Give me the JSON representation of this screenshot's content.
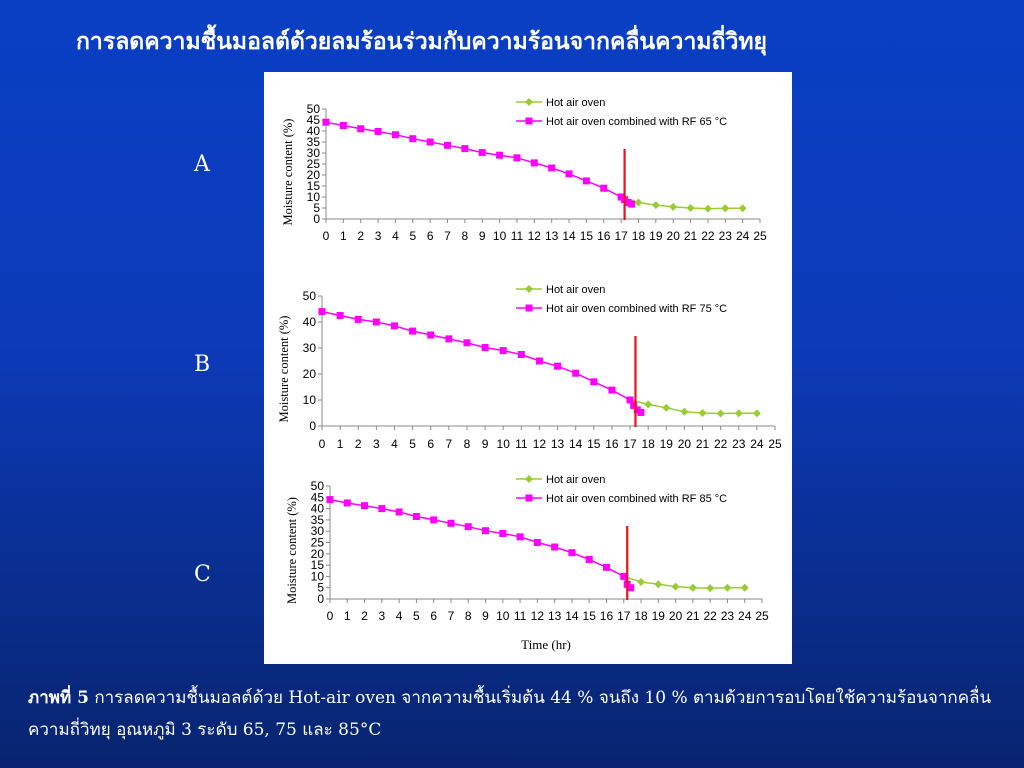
{
  "title": "การลดความชื้นมอลต์ด้วยลมร้อนร่วมกับความร้อนจากคลื่นความถี่วิทยุ",
  "labels": {
    "a": "A",
    "b": "B",
    "c": "C"
  },
  "caption": {
    "prefix": "ภาพที่ 5",
    "text": " การลดความชื้นมอลต์ด้วย Hot-air oven จากความชื้นเริ่มต้น 44 % จนถึง 10 % ตามด้วยการอบโดยใช้ความร้อนจากคลื่นความถี่วิทยุ อุณหภูมิ 3 ระดับ 65, 75 และ 85°C"
  },
  "colors": {
    "hot_air": "#99cc33",
    "rf": "#ff00ff",
    "marker_line": "#e8141c"
  },
  "chart_data": [
    {
      "type": "line",
      "panel": "A",
      "xlabel": "",
      "ylabel": "Moisture content (%)",
      "xlim": [
        0,
        25
      ],
      "ylim": [
        0,
        50
      ],
      "yticks": [
        0,
        5,
        10,
        15,
        20,
        25,
        30,
        35,
        40,
        45,
        50
      ],
      "xticks": [
        0,
        1,
        2,
        3,
        4,
        5,
        6,
        7,
        8,
        9,
        10,
        11,
        12,
        13,
        14,
        15,
        16,
        17,
        18,
        19,
        20,
        21,
        22,
        23,
        24,
        25
      ],
      "vline_x": 17.2,
      "legend_position": "top-right",
      "series": [
        {
          "name": "Hot air oven",
          "color": "#99cc33",
          "marker": "diamond",
          "x": [
            17,
            18,
            19,
            20,
            21,
            22,
            23,
            24
          ],
          "y": [
            10,
            7.5,
            6.3,
            5.5,
            5.0,
            4.7,
            4.9,
            4.9
          ]
        },
        {
          "name": "Hot air oven combined with RF 65 °C",
          "color": "#ff00ff",
          "marker": "square",
          "x": [
            0,
            1,
            2,
            3,
            4,
            5,
            6,
            7,
            8,
            9,
            10,
            11,
            12,
            13,
            14,
            15,
            16,
            17,
            17.2,
            17.4,
            17.6
          ],
          "y": [
            44,
            42.5,
            41,
            39.8,
            38.3,
            36.5,
            35,
            33.5,
            32,
            30.2,
            29,
            27.8,
            25.5,
            23.2,
            20.5,
            17.3,
            14,
            10,
            8.8,
            7.5,
            6.8
          ]
        }
      ]
    },
    {
      "type": "line",
      "panel": "B",
      "xlabel": "",
      "ylabel": "Moisture content (%)",
      "xlim": [
        0,
        25
      ],
      "ylim": [
        0,
        50
      ],
      "yticks": [
        0,
        10,
        20,
        30,
        40,
        50
      ],
      "xticks": [
        0,
        1,
        2,
        3,
        4,
        5,
        6,
        7,
        8,
        9,
        10,
        11,
        12,
        13,
        14,
        15,
        16,
        17,
        18,
        19,
        20,
        21,
        22,
        23,
        24,
        25
      ],
      "vline_x": 17.3,
      "legend_position": "top-right",
      "series": [
        {
          "name": "Hot air oven",
          "color": "#99cc33",
          "marker": "diamond",
          "x": [
            17,
            18,
            19,
            20,
            21,
            22,
            23,
            24
          ],
          "y": [
            10,
            8.3,
            7.0,
            5.5,
            5.0,
            4.8,
            4.9,
            4.9
          ]
        },
        {
          "name": "Hot air oven combined with RF 75 °C",
          "color": "#ff00ff",
          "marker": "square",
          "x": [
            0,
            1,
            2,
            3,
            4,
            5,
            6,
            7,
            8,
            9,
            10,
            11,
            12,
            13,
            14,
            15,
            16,
            17,
            17.2,
            17.4,
            17.6
          ],
          "y": [
            44,
            42.5,
            41,
            40,
            38.5,
            36.5,
            35,
            33.5,
            32,
            30.2,
            29,
            27.5,
            25,
            23,
            20.3,
            17,
            13.8,
            10,
            7.9,
            6.2,
            5.2
          ]
        }
      ]
    },
    {
      "type": "line",
      "panel": "C",
      "xlabel": "Time (hr)",
      "ylabel": "Moisture content (%)",
      "xlim": [
        0,
        25
      ],
      "ylim": [
        0,
        50
      ],
      "yticks": [
        0,
        5,
        10,
        15,
        20,
        25,
        30,
        35,
        40,
        45,
        50
      ],
      "xticks": [
        0,
        1,
        2,
        3,
        4,
        5,
        6,
        7,
        8,
        9,
        10,
        11,
        12,
        13,
        14,
        15,
        16,
        17,
        18,
        19,
        20,
        21,
        22,
        23,
        24,
        25
      ],
      "vline_x": 17.2,
      "legend_position": "top-right",
      "series": [
        {
          "name": "Hot air oven",
          "color": "#99cc33",
          "marker": "diamond",
          "x": [
            17,
            18,
            19,
            20,
            21,
            22,
            23,
            24
          ],
          "y": [
            10,
            7.5,
            6.5,
            5.5,
            5.0,
            4.8,
            5.0,
            5.0
          ]
        },
        {
          "name": "Hot air oven combined with RF 85 °C",
          "color": "#ff00ff",
          "marker": "square",
          "x": [
            0,
            1,
            2,
            3,
            4,
            5,
            6,
            7,
            8,
            9,
            10,
            11,
            12,
            13,
            14,
            15,
            16,
            17,
            17.2,
            17.4
          ],
          "y": [
            44,
            42.5,
            41.3,
            40,
            38.5,
            36.5,
            35,
            33.5,
            32,
            30.2,
            29,
            27.5,
            25,
            23,
            20.5,
            17.5,
            14,
            10,
            6.5,
            5
          ]
        }
      ]
    }
  ]
}
